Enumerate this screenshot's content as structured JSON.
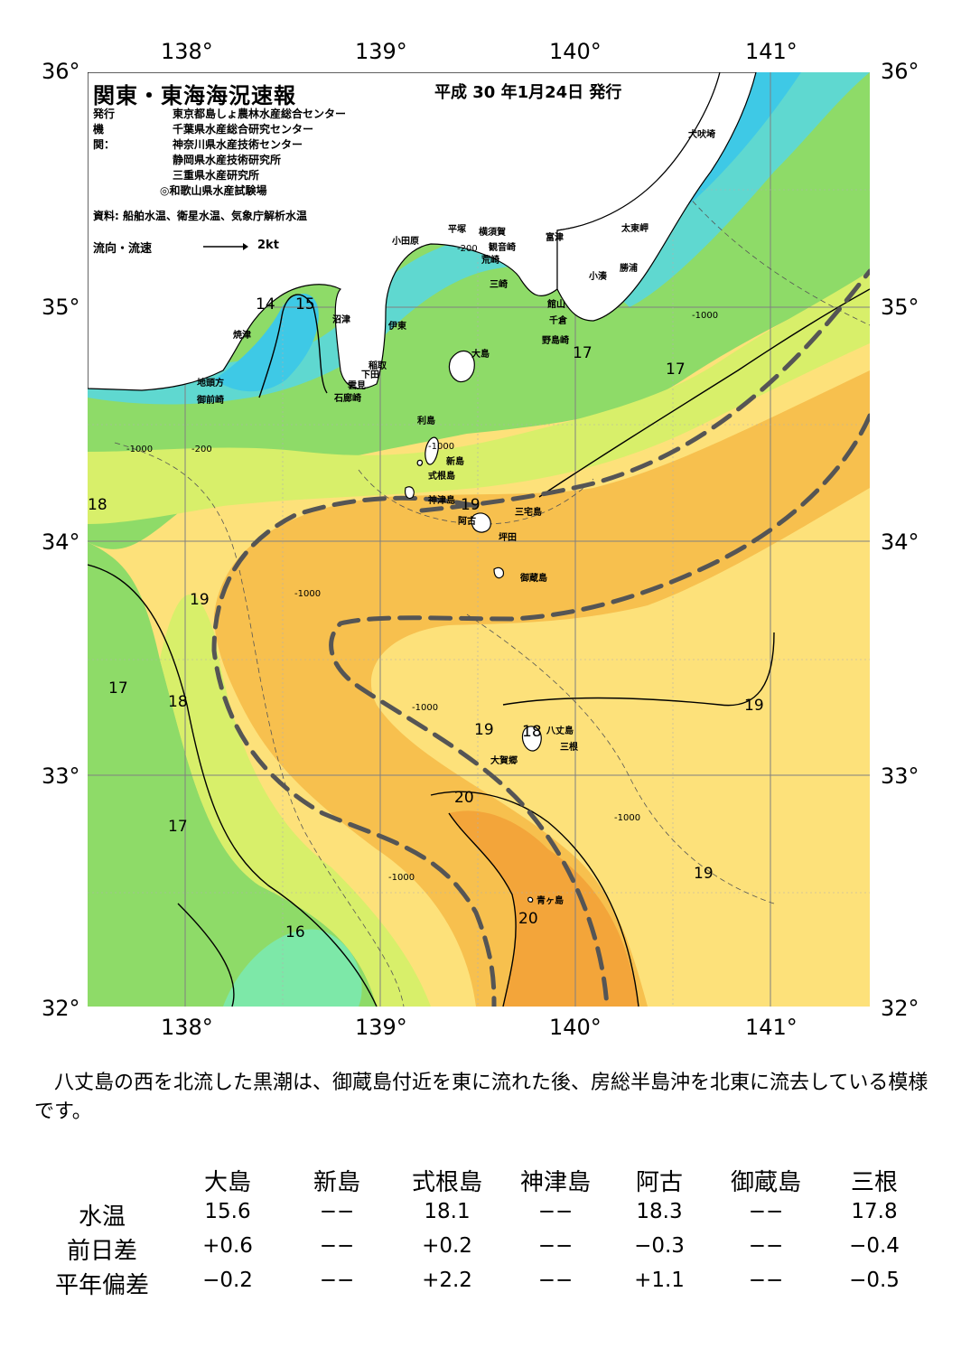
{
  "map": {
    "title": "関東・東海海況速報",
    "issue_date": "平成 30 年1月24日 発行",
    "agencies_label": "発行機関：",
    "agencies": [
      "東京都島しょ農林水産総合センター",
      "千葉県水産総合研究センター",
      "神奈川県水産技術センター",
      "静岡県水産技術研究所",
      "三重県水産研究所",
      "◎和歌山県水産試験場"
    ],
    "source": "資料: 船舶水温、衛星水温、気象庁解析水温",
    "legend_label": "流向・流速",
    "legend_speed": "2kt",
    "lon_labels": [
      "138°",
      "139°",
      "140°",
      "141°"
    ],
    "lat_labels": [
      "36°",
      "35°",
      "34°",
      "33°",
      "32°"
    ],
    "places": [
      "犬吠埼",
      "太東岬",
      "勝浦",
      "小湊",
      "富津",
      "横須賀",
      "観音崎",
      "平塚",
      "小田原",
      "荒崎",
      "三崎",
      "館山",
      "千倉",
      "野島崎",
      "沼津",
      "伊東",
      "焼津",
      "稲取",
      "下田",
      "雲見",
      "石廊崎",
      "地頭方",
      "御前崎",
      "大島",
      "利島",
      "新島",
      "式根島",
      "神津島",
      "三宅島",
      "阿古",
      "坪田",
      "御蔵島",
      "八丈島",
      "三根",
      "大賀郷",
      "青ヶ島"
    ],
    "depth_labels": [
      "-200",
      "-1000"
    ],
    "isotherm_labels": [
      "14",
      "15",
      "17",
      "17",
      "18",
      "19",
      "19",
      "17",
      "18",
      "17",
      "16",
      "19",
      "18",
      "19",
      "20",
      "20",
      "19"
    ],
    "colors": {
      "t14": "#3ec9e6",
      "t15": "#5fd8d0",
      "t16": "#7de8a8",
      "t17": "#8edb68",
      "t18": "#d8ef6a",
      "t19": "#fde17a",
      "t20": "#f7c04e",
      "t21": "#f3a53a",
      "kuroshio": "#555555"
    }
  },
  "summary": "八丈島の西を北流した黒潮は、御蔵島付近を東に流れた後、房総半島沖を北東に流去している模様です。",
  "table": {
    "stations": [
      "大島",
      "新島",
      "式根島",
      "神津島",
      "阿古",
      "御蔵島",
      "三根"
    ],
    "rows": [
      {
        "label": "水温",
        "values": [
          "15.6",
          "−−",
          "18.1",
          "−−",
          "18.3",
          "−−",
          "17.8"
        ]
      },
      {
        "label": "前日差",
        "values": [
          "+0.6",
          "−−",
          "+0.2",
          "−−",
          "−0.3",
          "−−",
          "−0.4"
        ]
      },
      {
        "label": "平年偏差",
        "values": [
          "−0.2",
          "−−",
          "+2.2",
          "−−",
          "+1.1",
          "−−",
          "−0.5"
        ]
      }
    ]
  }
}
